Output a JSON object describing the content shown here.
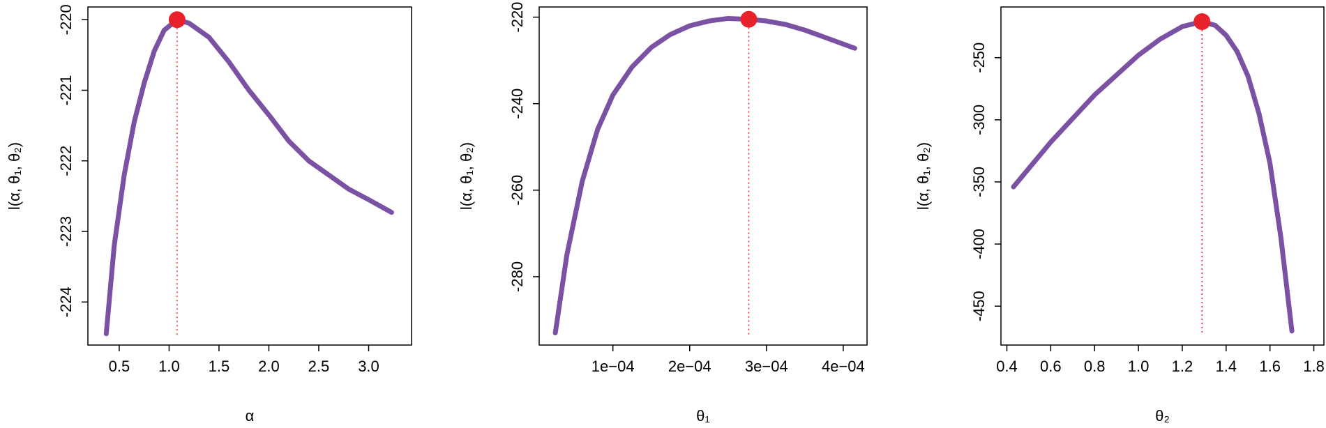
{
  "chart_data": [
    {
      "type": "line",
      "xlabel": "α",
      "ylabel": "l(α, θ₁, θ₂)",
      "x": [
        0.37,
        0.45,
        0.55,
        0.65,
        0.75,
        0.85,
        0.95,
        1.08,
        1.2,
        1.4,
        1.6,
        1.8,
        2.0,
        2.2,
        2.4,
        2.6,
        2.8,
        3.0,
        3.23
      ],
      "values": [
        -224.45,
        -223.2,
        -222.2,
        -221.45,
        -220.9,
        -220.45,
        -220.15,
        -220.0,
        -220.05,
        -220.25,
        -220.6,
        -221.0,
        -221.35,
        -221.72,
        -222.0,
        -222.2,
        -222.4,
        -222.55,
        -222.73
      ],
      "color": "#7b52a3",
      "peak": {
        "x": 1.08,
        "y": -220.0,
        "color": "#e8222b"
      },
      "xlim": [
        0.186,
        3.43
      ],
      "ylim": [
        -224.61,
        -219.82
      ],
      "xticks": [
        0.5,
        {
          "value": 1.0,
          "label": "1.0"
        },
        1.5,
        {
          "value": 2.0,
          "label": "2.0"
        },
        2.5,
        {
          "value": 3.0,
          "label": "3.0"
        }
      ],
      "yticks": [
        -224,
        -223,
        -222,
        -221,
        -220
      ]
    },
    {
      "type": "line",
      "xlabel": "θ₁",
      "ylabel": "l(α, θ₁, θ₂)",
      "x": [
        2.5e-05,
        4e-05,
        6e-05,
        8e-05,
        0.0001,
        0.000125,
        0.00015,
        0.000175,
        0.0002,
        0.000225,
        0.00025,
        0.000277,
        0.0003,
        0.000325,
        0.00035,
        0.000375,
        0.000415
      ],
      "values": [
        -293,
        -275,
        -258,
        -246,
        -238,
        -231.5,
        -227,
        -224,
        -222,
        -220.9,
        -220.3,
        -220.5,
        -220.9,
        -221.7,
        -223,
        -224.6,
        -227.2
      ],
      "color": "#7b52a3",
      "peak": {
        "x": 0.000277,
        "y": -220.5,
        "color": "#e8222b"
      },
      "xlim": [
        4e-06,
        0.000431
      ],
      "ylim": [
        -295.8,
        -217.65
      ],
      "xticks": [
        {
          "value": 0.0001,
          "label": "1e−04"
        },
        {
          "value": 0.0002,
          "label": "2e−04"
        },
        {
          "value": 0.0003,
          "label": "3e−04"
        },
        {
          "value": 0.0004,
          "label": "4e−04"
        }
      ],
      "yticks": [
        -280,
        -260,
        -240,
        -220
      ]
    },
    {
      "type": "line",
      "xlabel": "θ₂",
      "ylabel": "l(α, θ₁, θ₂)",
      "x": [
        0.43,
        0.6,
        0.8,
        1.0,
        1.1,
        1.2,
        1.29,
        1.35,
        1.4,
        1.45,
        1.5,
        1.55,
        1.6,
        1.65,
        1.7
      ],
      "values": [
        -354,
        -318,
        -280,
        -248,
        -235,
        -225,
        -221,
        -224,
        -232,
        -245,
        -265,
        -295,
        -335,
        -395,
        -470
      ],
      "color": "#7b52a3",
      "peak": {
        "x": 1.29,
        "y": -221,
        "color": "#e8222b"
      },
      "xlim": [
        0.373,
        1.846
      ],
      "ylim": [
        -481.3,
        -209.2
      ],
      "xticks": [
        0.4,
        0.6,
        0.8,
        {
          "value": 1.0,
          "label": "1.0"
        },
        1.2,
        1.4,
        1.6,
        1.8
      ],
      "yticks": [
        -450,
        -400,
        -350,
        -300,
        -250
      ]
    }
  ]
}
